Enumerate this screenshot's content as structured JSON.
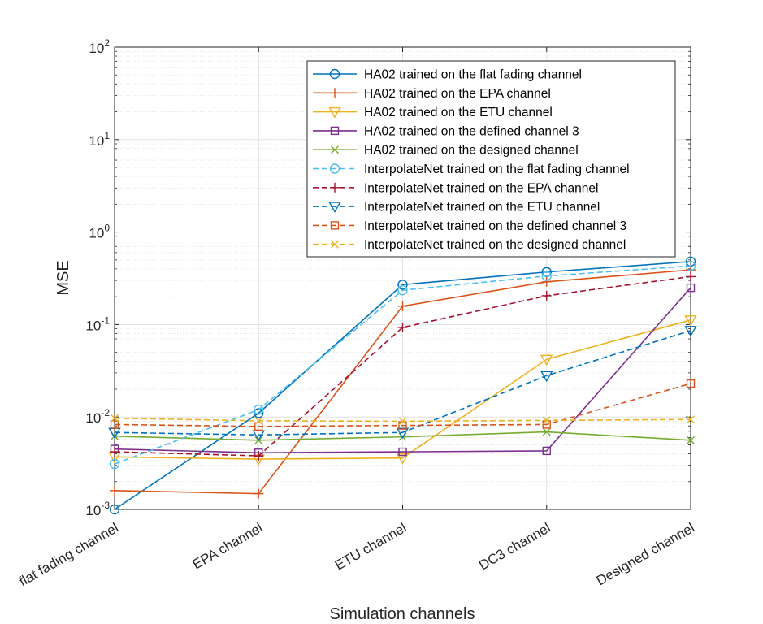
{
  "chart_data": {
    "type": "line",
    "title": "",
    "xlabel": "Simulation channels",
    "ylabel": "MSE",
    "y_scale": "log",
    "ylim": [
      0.001,
      100
    ],
    "yticks": [
      {
        "value": 0.001,
        "base": "10",
        "exp": "-3"
      },
      {
        "value": 0.01,
        "base": "10",
        "exp": "-2"
      },
      {
        "value": 0.1,
        "base": "10",
        "exp": "-1"
      },
      {
        "value": 1,
        "base": "10",
        "exp": "0"
      },
      {
        "value": 10,
        "base": "10",
        "exp": "1"
      },
      {
        "value": 100,
        "base": "10",
        "exp": "2"
      }
    ],
    "grid": true,
    "legend_position": "top-right",
    "categories": [
      "flat fading channel",
      "EPA channel",
      "ETU channel",
      "DC3 channel",
      "Designed channel"
    ],
    "series": [
      {
        "name": "HA02 trained on the flat fading channel",
        "color": "#0072BD",
        "dash": "solid",
        "marker": "circle",
        "values": [
          0.001,
          0.011,
          0.27,
          0.37,
          0.48
        ]
      },
      {
        "name": "HA02 trained on the EPA channel",
        "color": "#D95319",
        "dash": "solid",
        "marker": "plus",
        "values": [
          0.0016,
          0.00148,
          0.158,
          0.29,
          0.39
        ]
      },
      {
        "name": "HA02 trained on the ETU channel",
        "color": "#EDB120",
        "dash": "solid",
        "marker": "triangle-down",
        "values": [
          0.0037,
          0.0035,
          0.0036,
          0.042,
          0.112
        ]
      },
      {
        "name": "HA02 trained on the defined channel 3",
        "color": "#7E2F8E",
        "dash": "solid",
        "marker": "square",
        "values": [
          0.0045,
          0.0041,
          0.0042,
          0.0043,
          0.25
        ]
      },
      {
        "name": "HA02 trained on the designed channel",
        "color": "#77AC30",
        "dash": "solid",
        "marker": "x",
        "values": [
          0.0062,
          0.0056,
          0.0061,
          0.0069,
          0.0056
        ]
      },
      {
        "name": "InterpolateNet trained on the flat fading channel",
        "color": "#4DBEEE",
        "dash": "dashed",
        "marker": "circle",
        "values": [
          0.0031,
          0.012,
          0.235,
          0.335,
          0.43
        ]
      },
      {
        "name": "InterpolateNet trained on the EPA channel",
        "color": "#A2142F",
        "dash": "dashed",
        "marker": "plus",
        "values": [
          0.0042,
          0.0038,
          0.093,
          0.205,
          0.33
        ]
      },
      {
        "name": "InterpolateNet trained on the ETU channel",
        "color": "#0072BD",
        "dash": "dashed",
        "marker": "triangle-down",
        "values": [
          0.0068,
          0.0064,
          0.0068,
          0.028,
          0.086
        ]
      },
      {
        "name": "InterpolateNet trained on the defined channel 3",
        "color": "#D95319",
        "dash": "dashed",
        "marker": "square",
        "values": [
          0.0083,
          0.0079,
          0.0081,
          0.0083,
          0.023
        ]
      },
      {
        "name": "InterpolateNet trained on the designed channel",
        "color": "#EDB120",
        "dash": "dashed",
        "marker": "x",
        "values": [
          0.0097,
          0.0091,
          0.009,
          0.0092,
          0.0094
        ]
      }
    ]
  }
}
